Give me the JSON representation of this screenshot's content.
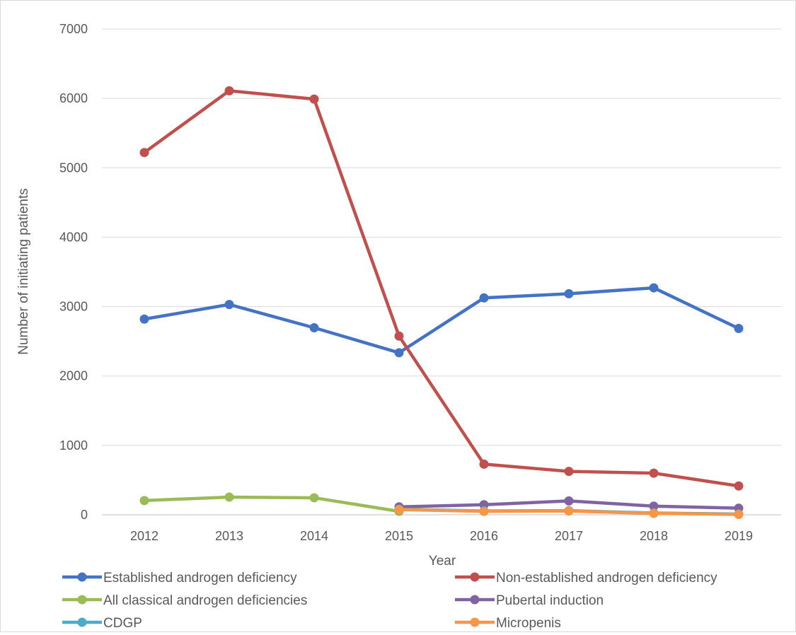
{
  "chart_data": {
    "type": "line",
    "title": "",
    "xlabel": "Year",
    "ylabel": "Number of initiating patients",
    "categories": [
      "2012",
      "2013",
      "2014",
      "2015",
      "2016",
      "2017",
      "2018",
      "2019"
    ],
    "ylim": [
      0,
      7000
    ],
    "yticks": [
      "0",
      "1000",
      "2000",
      "3000",
      "4000",
      "5000",
      "6000",
      "7000"
    ],
    "grid": "horizontal",
    "legend_position": "bottom",
    "series": [
      {
        "name": "Established androgen deficiency",
        "color": "#4472C4",
        "values": [
          2820,
          3030,
          2695,
          2335,
          3125,
          3185,
          3270,
          2685
        ]
      },
      {
        "name": "Non-established androgen deficiency",
        "color": "#C0504D",
        "values": [
          5220,
          6110,
          5990,
          2575,
          730,
          625,
          600,
          415
        ]
      },
      {
        "name": "All classical androgen deficiencies",
        "color": "#9BBB59",
        "values": [
          205,
          255,
          245,
          50,
          null,
          null,
          null,
          null
        ]
      },
      {
        "name": "Pubertal induction",
        "color": "#8064A2",
        "values": [
          null,
          null,
          null,
          115,
          145,
          200,
          125,
          95
        ]
      },
      {
        "name": "CDGP",
        "color": "#4BACC6",
        "values": [
          null,
          null,
          null,
          80,
          55,
          60,
          25,
          10
        ]
      },
      {
        "name": "Micropenis",
        "color": "#F79646",
        "values": [
          null,
          null,
          null,
          75,
          50,
          55,
          20,
          5
        ]
      }
    ]
  }
}
